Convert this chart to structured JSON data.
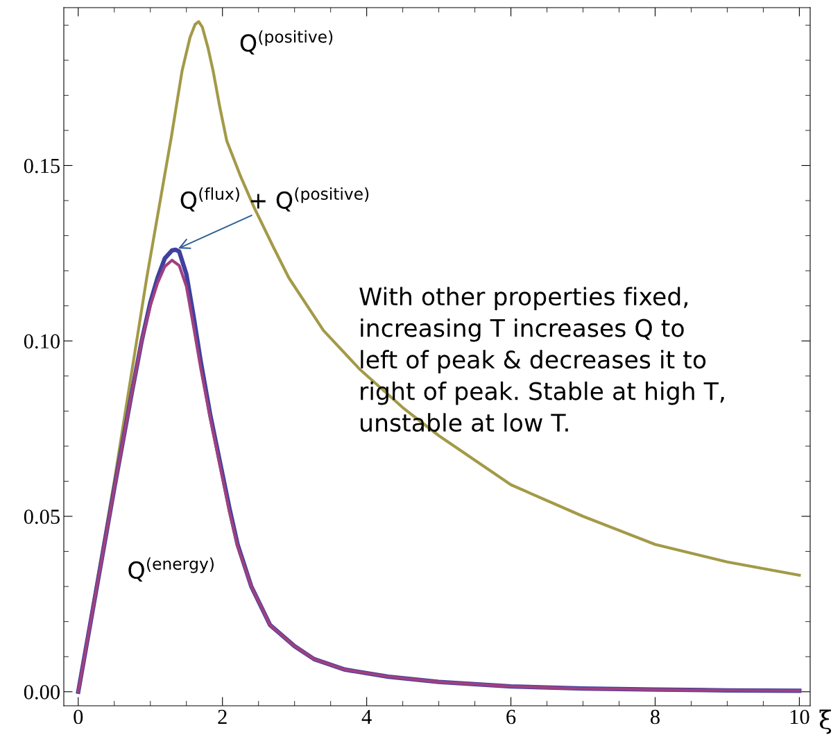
{
  "chart_data": {
    "type": "line",
    "xlabel": "ξ",
    "xlim": [
      -0.2,
      10.15
    ],
    "ylim": [
      -0.004,
      0.195
    ],
    "xticks": [
      0,
      2,
      4,
      6,
      8,
      10
    ],
    "yticks": [
      {
        "value": 0,
        "label": "0.00"
      },
      {
        "value": 0.05,
        "label": "0.05"
      },
      {
        "value": 0.1,
        "label": "0.10"
      },
      {
        "value": 0.15,
        "label": "0.15"
      }
    ],
    "grid": false,
    "legend": false,
    "line_style": "solid",
    "marker": "none",
    "series": [
      {
        "color": "#a39a48",
        "x": [
          0,
          0.5,
          0.95,
          1.29,
          1.44,
          1.55,
          1.62,
          1.67,
          1.72,
          1.8,
          1.87,
          1.96,
          2.06,
          2.25,
          2.44,
          2.7,
          2.92,
          3.4,
          3.9,
          4.5,
          5,
          6,
          7,
          8,
          9,
          10
        ],
        "values": [
          0,
          0.06,
          0.118,
          0.158,
          0.177,
          0.1865,
          0.1902,
          0.191,
          0.1895,
          0.1835,
          0.177,
          0.167,
          0.157,
          0.147,
          0.138,
          0.127,
          0.118,
          0.103,
          0.092,
          0.081,
          0.073,
          0.059,
          0.05,
          0.042,
          0.037,
          0.0332
        ]
      },
      {
        "color": "#4040a0",
        "x": [
          0,
          0.25,
          0.5,
          0.75,
          0.88,
          1.0,
          1.1,
          1.2,
          1.3,
          1.35,
          1.4,
          1.5,
          1.6,
          1.7,
          1.83,
          2.0,
          2.1,
          2.21,
          2.4,
          2.66,
          3.0,
          3.27,
          3.7,
          4.3,
          5,
          6,
          7,
          8,
          9,
          10
        ],
        "values": [
          0,
          0.029,
          0.058,
          0.086,
          0.1,
          0.111,
          0.118,
          0.1235,
          0.1258,
          0.126,
          0.1255,
          0.119,
          0.107,
          0.094,
          0.079,
          0.062,
          0.052,
          0.042,
          0.03,
          0.019,
          0.013,
          0.0093,
          0.0063,
          0.0043,
          0.0028,
          0.0015,
          0.0009,
          0.0006,
          0.0004,
          0.0003
        ]
      },
      {
        "color": "#a0407f",
        "x": [
          0,
          0.25,
          0.5,
          0.75,
          0.88,
          1.0,
          1.1,
          1.2,
          1.3,
          1.4,
          1.5,
          1.6,
          1.7,
          1.83,
          2.0,
          2.1,
          2.21,
          2.4,
          2.66,
          3.0,
          3.27,
          3.7,
          4.3,
          5,
          6,
          7,
          8,
          9,
          10
        ],
        "values": [
          0,
          0.029,
          0.058,
          0.086,
          0.1,
          0.11,
          0.1165,
          0.1212,
          0.123,
          0.1215,
          0.1155,
          0.104,
          0.092,
          0.078,
          0.061,
          0.051,
          0.0415,
          0.03,
          0.019,
          0.013,
          0.0093,
          0.0063,
          0.0043,
          0.0028,
          0.0015,
          0.0009,
          0.0006,
          0.0004,
          0.0003
        ]
      }
    ],
    "annotations": [
      "Q$^{(positive)}$",
      {
        "text": "Q$^{(flux)}$ + Q$^{(positive)}$",
        "x": 1.35,
        "y": 0.126
      },
      "Q$^{(energy)}$",
      "With other properties fixed,\nincreasing T increases Q to\nleft of peak & decreases it to\nright of peak. Stable at high T,\nunstable at low T."
    ]
  }
}
